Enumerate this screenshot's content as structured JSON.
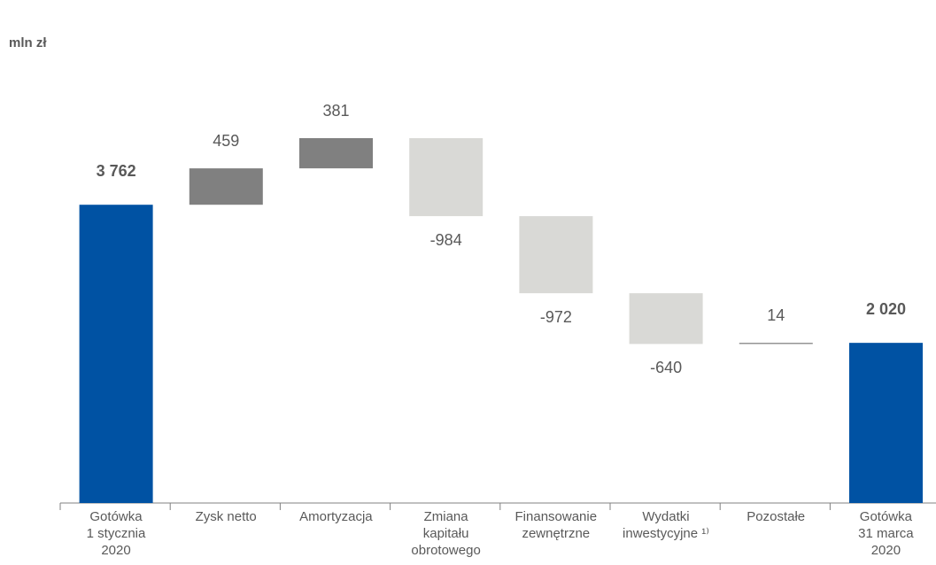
{
  "chart_data": {
    "type": "waterfall",
    "unit_label": "mln zł",
    "categories": [
      "Gotówka\n1 stycznia\n2020",
      "Zysk netto",
      "Amortyzacja",
      "Zmiana\nkapitału\nobrotowego",
      "Finansowanie\nzewnętrzne",
      "Wydatki\ninwestycyjne ¹⁾",
      "Pozostałe",
      "Gotówka\n31 marca\n2020"
    ],
    "values": [
      3762,
      459,
      381,
      -984,
      -972,
      -640,
      14,
      2020
    ],
    "value_labels": [
      "3 762",
      "459",
      "381",
      "-984",
      "-972",
      "-640",
      "14",
      "2 020"
    ],
    "total_color": "#0052a3",
    "increase_color": "#808080",
    "decrease_color": "#d9d9d6"
  }
}
